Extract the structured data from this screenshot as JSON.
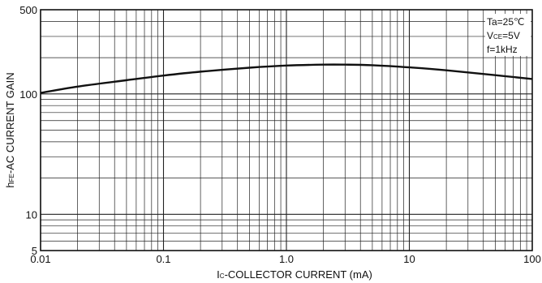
{
  "chart_data": {
    "type": "line",
    "x_scale": "log",
    "y_scale": "log",
    "xlim": [
      0.01,
      100
    ],
    "ylim": [
      5,
      500
    ],
    "grid": true,
    "x_ticks": [
      {
        "value": 0.01,
        "label": "0.01"
      },
      {
        "value": 0.1,
        "label": "0.1"
      },
      {
        "value": 1,
        "label": "1.0"
      },
      {
        "value": 10,
        "label": "10"
      },
      {
        "value": 100,
        "label": "100"
      }
    ],
    "y_ticks": [
      {
        "value": 5,
        "label": "5"
      },
      {
        "value": 10,
        "label": "10"
      },
      {
        "value": 100,
        "label": "100"
      },
      {
        "value": 500,
        "label": "500"
      }
    ],
    "xlabel": {
      "prefix": "I",
      "sub": "C",
      "rest": "-COLLECTOR  CURRENT  (mA)"
    },
    "ylabel": {
      "prefix": "h",
      "sub": "FE",
      "rest": "-AC  CURRENT  GAIN"
    },
    "conditions": [
      {
        "main": "Ta=25℃",
        "sub": "",
        "rest": ""
      },
      {
        "main": "V",
        "sub": "CE",
        "rest": "=5V"
      },
      {
        "main": "f=1kHz",
        "sub": "",
        "rest": ""
      }
    ],
    "series": [
      {
        "x": [
          0.01,
          0.02,
          0.05,
          0.1,
          0.2,
          0.5,
          1,
          2,
          3,
          5,
          10,
          20,
          50,
          100
        ],
        "y": [
          102,
          115,
          130,
          142,
          153,
          165,
          172,
          175,
          175,
          173,
          166,
          157,
          143,
          133
        ]
      }
    ]
  }
}
